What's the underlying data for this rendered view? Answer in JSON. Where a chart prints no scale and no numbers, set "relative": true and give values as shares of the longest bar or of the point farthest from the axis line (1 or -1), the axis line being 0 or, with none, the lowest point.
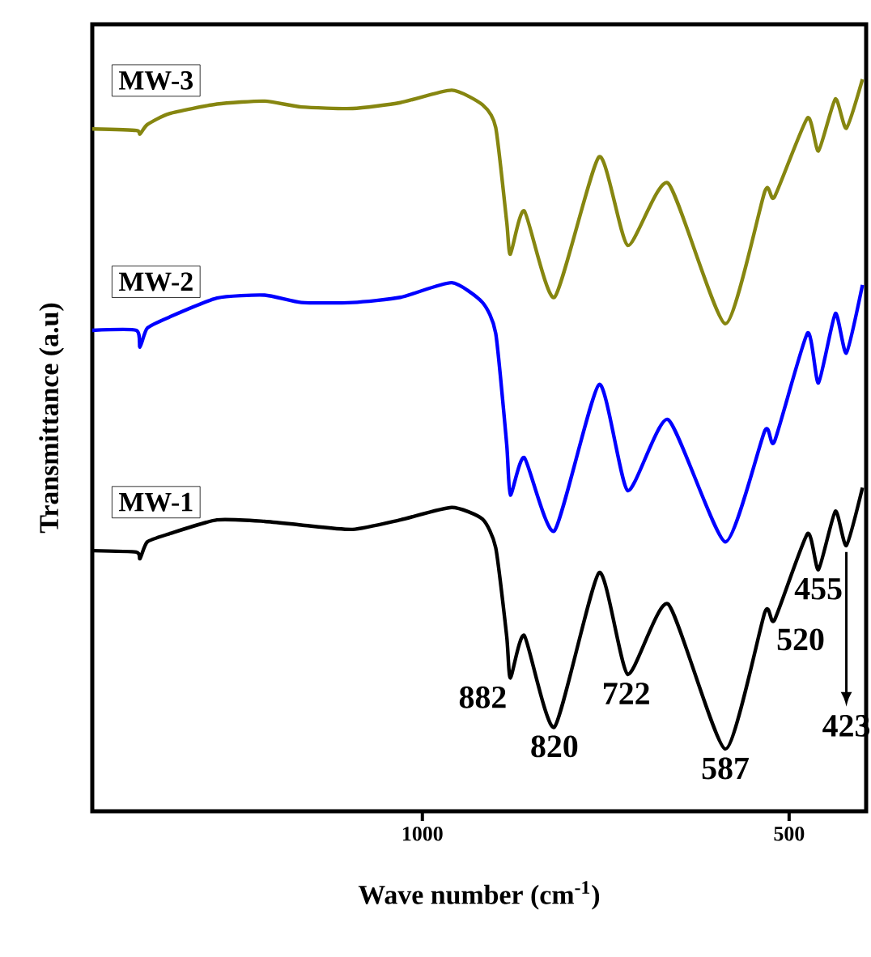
{
  "chart_data": {
    "type": "line",
    "relative": true,
    "xlabel": "Wave number (cm$^{-1}$)",
    "ylabel": "Transmittance (a.u)",
    "xlim": [
      1450,
      395
    ],
    "xticks": [
      1000,
      500
    ],
    "x": [
      1450,
      1390,
      1385,
      1375,
      1345,
      1280,
      1215,
      1165,
      1095,
      1030,
      960,
      918,
      900,
      885,
      880,
      861,
      820,
      759,
      720,
      665,
      587,
      533,
      520,
      475,
      460,
      437,
      422,
      400
    ],
    "series": [
      {
        "name": "MW-3",
        "color": "#868610",
        "values": [
          0.932,
          0.93,
          0.925,
          0.938,
          0.953,
          0.966,
          0.97,
          0.962,
          0.96,
          0.968,
          0.985,
          0.965,
          0.934,
          0.805,
          0.761,
          0.82,
          0.702,
          0.894,
          0.773,
          0.858,
          0.666,
          0.847,
          0.839,
          0.947,
          0.902,
          0.973,
          0.933,
          1
        ]
      },
      {
        "name": "MW-2",
        "color": "#0000ff",
        "values": [
          0.657,
          0.657,
          0.634,
          0.66,
          0.675,
          0.701,
          0.705,
          0.695,
          0.695,
          0.702,
          0.722,
          0.695,
          0.653,
          0.501,
          0.432,
          0.483,
          0.383,
          0.583,
          0.438,
          0.535,
          0.368,
          0.52,
          0.505,
          0.653,
          0.585,
          0.68,
          0.626,
          0.719
        ]
      },
      {
        "name": "MW-1",
        "color": "#000000",
        "values": [
          0.356,
          0.354,
          0.345,
          0.368,
          0.379,
          0.398,
          0.396,
          0.391,
          0.385,
          0.398,
          0.415,
          0.399,
          0.36,
          0.239,
          0.182,
          0.24,
          0.115,
          0.326,
          0.187,
          0.283,
          0.085,
          0.272,
          0.261,
          0.379,
          0.33,
          0.41,
          0.363,
          0.442
        ]
      }
    ],
    "annotations": [
      {
        "text": "882",
        "x": 882,
        "y": 0.182
      },
      {
        "text": "820",
        "x": 820,
        "y": 0.115
      },
      {
        "text": "722",
        "x": 722,
        "y": 0.187
      },
      {
        "text": "587",
        "x": 587,
        "y": 0.085
      },
      {
        "text": "520",
        "x": 520,
        "y": 0.261
      },
      {
        "text": "455",
        "x": 460,
        "y": 0.33
      },
      {
        "text": "423",
        "x": 422,
        "y": 0.363
      }
    ]
  }
}
